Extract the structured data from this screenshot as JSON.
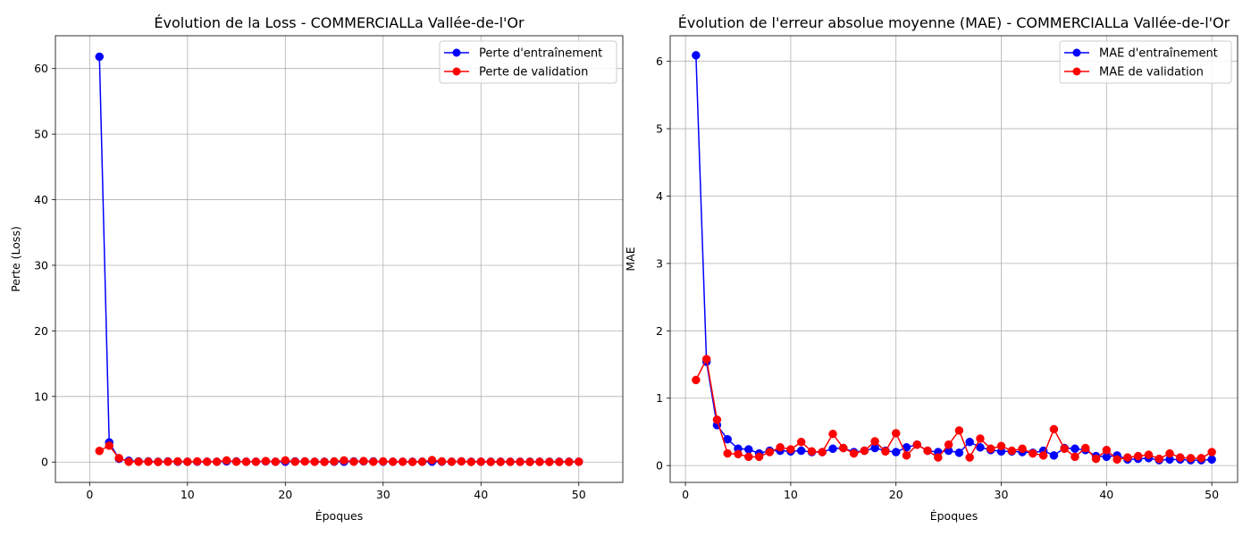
{
  "chart_data": [
    {
      "type": "line",
      "title": "Évolution de la Loss - COMMERCIALLa Vallée-de-l'Or",
      "xlabel": "Époques",
      "ylabel": "Perte (Loss)",
      "xlim": [
        -3.5,
        54.5
      ],
      "ylim": [
        -3.1,
        65
      ],
      "xticks": [
        0,
        10,
        20,
        30,
        40,
        50
      ],
      "yticks": [
        0,
        10,
        20,
        30,
        40,
        50,
        60
      ],
      "grid": true,
      "legend_position": "top-right",
      "x": [
        1,
        2,
        3,
        4,
        5,
        6,
        7,
        8,
        9,
        10,
        11,
        12,
        13,
        14,
        15,
        16,
        17,
        18,
        19,
        20,
        21,
        22,
        23,
        24,
        25,
        26,
        27,
        28,
        29,
        30,
        31,
        32,
        33,
        34,
        35,
        36,
        37,
        38,
        39,
        40,
        41,
        42,
        43,
        44,
        45,
        46,
        47,
        48,
        49,
        50
      ],
      "series": [
        {
          "name": "Perte d'entraînement",
          "color": "#0000ff",
          "values": [
            61.8,
            3.0,
            0.5,
            0.2,
            0.1,
            0.1,
            0.05,
            0.1,
            0.05,
            0.05,
            0.05,
            0.05,
            0.05,
            0.1,
            0.1,
            0.05,
            0.05,
            0.1,
            0.05,
            0.05,
            0.1,
            0.1,
            0.05,
            0.05,
            0.05,
            0.05,
            0.1,
            0.1,
            0.1,
            0.05,
            0.05,
            0.05,
            0.05,
            0.05,
            0.05,
            0.05,
            0.05,
            0.1,
            0.05,
            0.05,
            0.05,
            0.05,
            0.05,
            0.05,
            0.05,
            0.05,
            0.05,
            0.05,
            0.05,
            0.05
          ]
        },
        {
          "name": "Perte de validation",
          "color": "#ff0000",
          "values": [
            1.7,
            2.5,
            0.6,
            0.05,
            0.05,
            0.05,
            0.02,
            0.05,
            0.1,
            0.05,
            0.1,
            0.05,
            0.05,
            0.25,
            0.05,
            0.05,
            0.05,
            0.15,
            0.05,
            0.25,
            0.05,
            0.1,
            0.05,
            0.02,
            0.1,
            0.25,
            0.05,
            0.15,
            0.05,
            0.1,
            0.05,
            0.05,
            0.02,
            0.05,
            0.3,
            0.1,
            0.05,
            0.1,
            0.02,
            0.05,
            0.02,
            0.02,
            0.03,
            0.03,
            0.02,
            0.03,
            0.02,
            0.02,
            0.02,
            0.05
          ]
        }
      ]
    },
    {
      "type": "line",
      "title": "Évolution de l'erreur absolue moyenne (MAE) - COMMERCIALLa Vallée-de-l'Or",
      "xlabel": "Époques",
      "ylabel": "MAE",
      "xlim": [
        -1.45,
        52.45
      ],
      "ylim": [
        -0.25,
        6.38
      ],
      "xticks": [
        0,
        10,
        20,
        30,
        40,
        50
      ],
      "yticks": [
        0,
        1,
        2,
        3,
        4,
        5,
        6
      ],
      "grid": true,
      "legend_position": "top-right",
      "x": [
        1,
        2,
        3,
        4,
        5,
        6,
        7,
        8,
        9,
        10,
        11,
        12,
        13,
        14,
        15,
        16,
        17,
        18,
        19,
        20,
        21,
        22,
        23,
        24,
        25,
        26,
        27,
        28,
        29,
        30,
        31,
        32,
        33,
        34,
        35,
        36,
        37,
        38,
        39,
        40,
        41,
        42,
        43,
        44,
        45,
        46,
        47,
        48,
        49,
        50
      ],
      "series": [
        {
          "name": "MAE d'entraînement",
          "color": "#0000ff",
          "values": [
            6.09,
            1.54,
            0.6,
            0.39,
            0.25,
            0.24,
            0.18,
            0.22,
            0.22,
            0.21,
            0.22,
            0.2,
            0.2,
            0.25,
            0.26,
            0.2,
            0.22,
            0.26,
            0.22,
            0.2,
            0.27,
            0.31,
            0.22,
            0.2,
            0.22,
            0.19,
            0.35,
            0.27,
            0.23,
            0.21,
            0.21,
            0.2,
            0.19,
            0.22,
            0.15,
            0.26,
            0.25,
            0.23,
            0.14,
            0.13,
            0.15,
            0.09,
            0.1,
            0.11,
            0.08,
            0.09,
            0.09,
            0.08,
            0.08,
            0.09
          ]
        },
        {
          "name": "MAE de validation",
          "color": "#ff0000",
          "values": [
            1.27,
            1.58,
            0.68,
            0.18,
            0.17,
            0.13,
            0.13,
            0.2,
            0.27,
            0.24,
            0.35,
            0.21,
            0.2,
            0.47,
            0.26,
            0.18,
            0.22,
            0.36,
            0.21,
            0.48,
            0.15,
            0.31,
            0.22,
            0.12,
            0.31,
            0.52,
            0.12,
            0.4,
            0.25,
            0.29,
            0.22,
            0.25,
            0.18,
            0.15,
            0.54,
            0.25,
            0.13,
            0.26,
            0.1,
            0.23,
            0.09,
            0.12,
            0.14,
            0.16,
            0.1,
            0.18,
            0.12,
            0.11,
            0.11,
            0.2
          ]
        }
      ]
    }
  ]
}
